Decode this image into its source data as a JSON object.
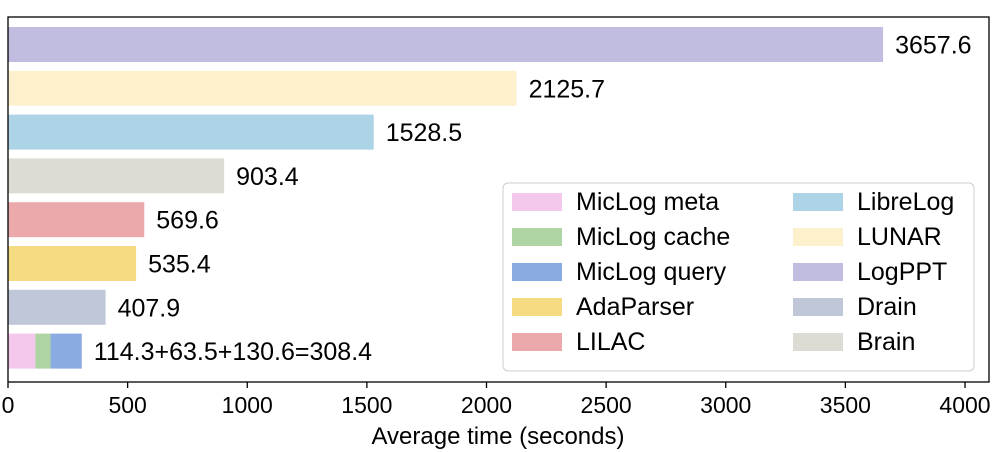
{
  "chart_data": {
    "type": "bar",
    "orientation": "horizontal",
    "xlabel": "Average time (seconds)",
    "xlim": [
      0,
      4000
    ],
    "xticks": [
      0,
      500,
      1000,
      1500,
      2000,
      2500,
      3000,
      3500,
      4000
    ],
    "grid": false,
    "legend_placement": "bottom-right",
    "bars": [
      {
        "name": "LogPPT",
        "value": 3657.6,
        "label": "3657.6",
        "color": "#c0bde0"
      },
      {
        "name": "LUNAR",
        "value": 2125.7,
        "label": "2125.7",
        "color": "#fdf1cd"
      },
      {
        "name": "LibreLog",
        "value": 1528.5,
        "label": "1528.5",
        "color": "#acd3e6"
      },
      {
        "name": "Brain",
        "value": 903.4,
        "label": "903.4",
        "color": "#dcdcd4"
      },
      {
        "name": "LILAC",
        "value": 569.6,
        "label": "569.6",
        "color": "#eba9ab"
      },
      {
        "name": "AdaParser",
        "value": 535.4,
        "label": "535.4",
        "color": "#f5db82"
      },
      {
        "name": "Drain",
        "value": 407.9,
        "label": "407.9",
        "color": "#c0c7d8"
      },
      {
        "name": "MicLog",
        "stacked": true,
        "label": "114.3+63.5+130.6=308.4",
        "segments": [
          {
            "name": "MicLog meta",
            "value": 114.3,
            "color": "#f3c8ec"
          },
          {
            "name": "MicLog cache",
            "value": 63.5,
            "color": "#afd4a3"
          },
          {
            "name": "MicLog query",
            "value": 130.6,
            "color": "#8aaae2"
          }
        ]
      }
    ],
    "legend": [
      {
        "label": "MicLog meta",
        "color": "#f3c8ec"
      },
      {
        "label": "MicLog cache",
        "color": "#afd4a3"
      },
      {
        "label": "MicLog query",
        "color": "#8aaae2"
      },
      {
        "label": "AdaParser",
        "color": "#f5db82"
      },
      {
        "label": "LILAC",
        "color": "#eba9ab"
      },
      {
        "label": "LibreLog",
        "color": "#acd3e6"
      },
      {
        "label": "LUNAR",
        "color": "#fdf1cd"
      },
      {
        "label": "LogPPT",
        "color": "#c0bde0"
      },
      {
        "label": "Drain",
        "color": "#c0c7d8"
      },
      {
        "label": "Brain",
        "color": "#dcdcd4"
      }
    ]
  }
}
